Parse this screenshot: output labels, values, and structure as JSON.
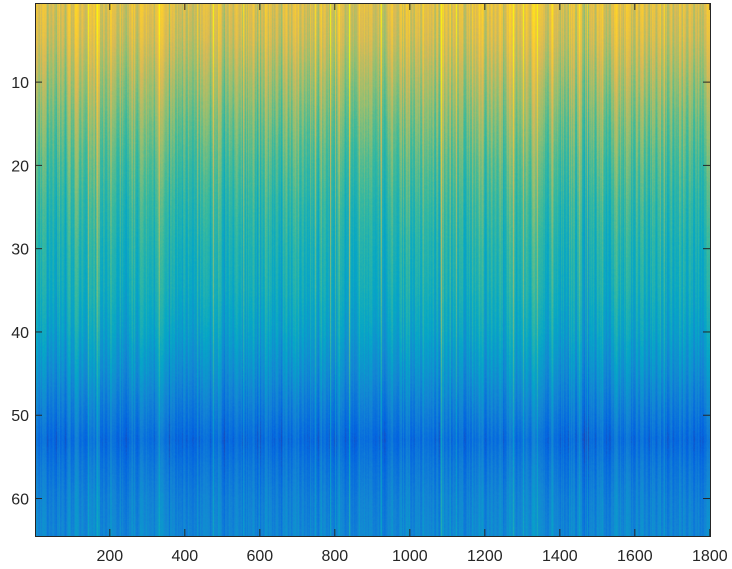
{
  "chart_data": {
    "type": "heatmap",
    "title": "",
    "xlabel": "",
    "ylabel": "",
    "xlim": [
      1,
      1800
    ],
    "ylim": [
      64,
      1
    ],
    "y_axis_direction": "top-to-bottom (row 1 at top)",
    "grid": false,
    "legend": "none",
    "colormap": "parula",
    "colormap_stops": [
      "#352a87",
      "#0363e1",
      "#1485d4",
      "#06a7c6",
      "#38b99e",
      "#92bf73",
      "#d9ba56",
      "#fcce2e",
      "#f9fb0e"
    ],
    "n_rows": 64,
    "n_cols": 1800,
    "x_ticks": [
      200,
      400,
      600,
      800,
      1000,
      1200,
      1400,
      1600,
      1800
    ],
    "x_tick_labels": [
      "200",
      "400",
      "600",
      "800",
      "1000",
      "1200",
      "1400",
      "1600",
      "1800"
    ],
    "y_ticks": [
      10,
      20,
      30,
      40,
      50,
      60
    ],
    "y_tick_labels": [
      "10",
      "20",
      "30",
      "40",
      "50",
      "60"
    ],
    "row_profile": {
      "rows": [
        1,
        5,
        10,
        15,
        20,
        25,
        30,
        35,
        40,
        45,
        50,
        53,
        56,
        60,
        64
      ],
      "mean_level": [
        0.78,
        0.74,
        0.66,
        0.59,
        0.53,
        0.48,
        0.44,
        0.41,
        0.36,
        0.29,
        0.21,
        0.16,
        0.2,
        0.24,
        0.26
      ]
    },
    "column_variation_amplitude": 0.2
  }
}
